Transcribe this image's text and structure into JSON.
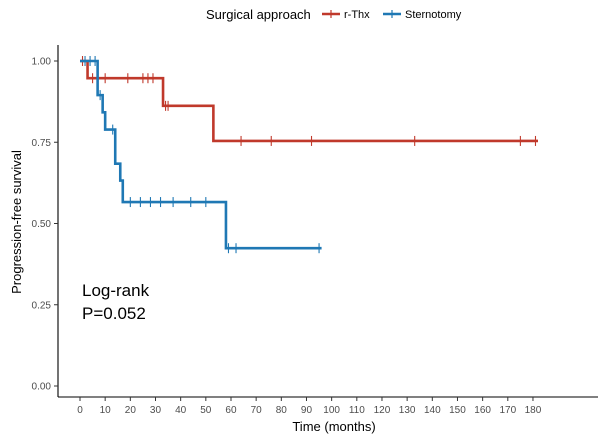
{
  "chart_data": {
    "type": "line",
    "subtype": "kaplan-meier-step",
    "xlabel": "Time (months)",
    "ylabel": "Progression-free survival",
    "xlim": [
      0,
      182
    ],
    "ylim": [
      0,
      1
    ],
    "x_ticks": [
      0,
      10,
      20,
      30,
      40,
      50,
      60,
      70,
      80,
      90,
      100,
      110,
      120,
      130,
      140,
      150,
      160,
      170,
      180
    ],
    "y_ticks": [
      0.0,
      0.25,
      0.5,
      0.75,
      1.0
    ],
    "y_tick_labels": [
      "0.00",
      "0.25",
      "0.50",
      "0.75",
      "1.00"
    ],
    "grid": false,
    "legend": {
      "title": "Surgical approach",
      "placement": "top",
      "entries": [
        "r-Thx",
        "Sternotomy"
      ]
    },
    "annotation": {
      "line1": "Log-rank",
      "line2": "P=0.052"
    },
    "series": [
      {
        "name": "r-Thx",
        "color": "#C0392B",
        "steps": [
          [
            0,
            1.0
          ],
          [
            3,
            0.947
          ],
          [
            33,
            0.862
          ],
          [
            53,
            0.754
          ],
          [
            182,
            0.754
          ]
        ],
        "censored": [
          [
            1,
            1.0
          ],
          [
            5,
            0.947
          ],
          [
            10,
            0.947
          ],
          [
            19,
            0.947
          ],
          [
            25,
            0.947
          ],
          [
            27,
            0.947
          ],
          [
            29,
            0.947
          ],
          [
            34,
            0.862
          ],
          [
            35,
            0.862
          ],
          [
            64,
            0.754
          ],
          [
            76,
            0.754
          ],
          [
            92,
            0.754
          ],
          [
            133,
            0.754
          ],
          [
            175,
            0.754
          ],
          [
            181,
            0.754
          ]
        ]
      },
      {
        "name": "Sternotomy",
        "color": "#1F78B4",
        "steps": [
          [
            0,
            1.0
          ],
          [
            7,
            0.895
          ],
          [
            9,
            0.842
          ],
          [
            10,
            0.789
          ],
          [
            14,
            0.684
          ],
          [
            16,
            0.632
          ],
          [
            17,
            0.566
          ],
          [
            58,
            0.424
          ],
          [
            96,
            0.424
          ]
        ],
        "censored": [
          [
            2,
            1.0
          ],
          [
            4,
            1.0
          ],
          [
            6,
            1.0
          ],
          [
            8,
            0.895
          ],
          [
            13,
            0.789
          ],
          [
            20,
            0.566
          ],
          [
            24,
            0.566
          ],
          [
            28,
            0.566
          ],
          [
            32,
            0.566
          ],
          [
            37,
            0.566
          ],
          [
            44,
            0.566
          ],
          [
            50,
            0.566
          ],
          [
            59,
            0.424
          ],
          [
            62,
            0.424
          ],
          [
            95,
            0.424
          ]
        ]
      }
    ]
  }
}
